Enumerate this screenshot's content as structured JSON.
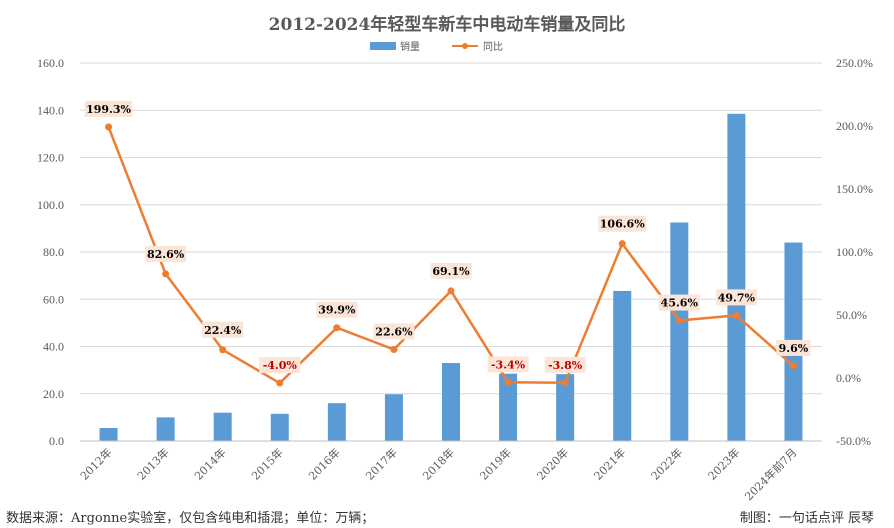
{
  "colors": {
    "bar": "#5b9bd5",
    "line": "#ed7d31",
    "label_bg": "#fbe5d6",
    "label_positive": "#000000",
    "label_negative": "#c00000",
    "grid": "#d9d9d9",
    "axis_text": "#595959"
  },
  "chart_data": {
    "type": "bar",
    "title": "2012-2024年轻型车新车中电动车销量及同比",
    "categories": [
      "2012年",
      "2013年",
      "2014年",
      "2015年",
      "2016年",
      "2017年",
      "2018年",
      "2019年",
      "2020年",
      "2021年",
      "2022年",
      "2023年",
      "2024年前7月"
    ],
    "series": [
      {
        "name": "销量",
        "type": "bar",
        "axis": "left",
        "values": [
          5.5,
          10,
          12,
          11.5,
          16,
          19.8,
          33,
          28.5,
          28.3,
          63.5,
          92.5,
          138.5,
          84
        ]
      },
      {
        "name": "同比",
        "type": "line",
        "axis": "right",
        "values": [
          199.3,
          82.6,
          22.4,
          -4.0,
          39.9,
          22.6,
          69.1,
          -3.4,
          -3.8,
          106.6,
          45.6,
          49.7,
          9.6
        ],
        "labels": [
          "199.3%",
          "82.6%",
          "22.4%",
          "-4.0%",
          "39.9%",
          "22.6%",
          "69.1%",
          "-3.4%",
          "-3.8%",
          "106.6%",
          "45.6%",
          "49.7%",
          "9.6%"
        ]
      }
    ],
    "ylim": [
      0,
      160
    ],
    "y2lim": [
      -50,
      250
    ],
    "yticks": [
      "0.0",
      "20.0",
      "40.0",
      "60.0",
      "80.0",
      "100.0",
      "120.0",
      "140.0",
      "160.0"
    ],
    "y2ticks": [
      "-50.0%",
      "0.0%",
      "50.0%",
      "100.0%",
      "150.0%",
      "200.0%",
      "250.0%"
    ],
    "grid": true,
    "legend": "top-center"
  },
  "footer": {
    "source": "数据来源：Argonne实验室，仅包含纯电和插混；单位：万辆；",
    "credit": "制图：一句话点评  辰琴"
  }
}
